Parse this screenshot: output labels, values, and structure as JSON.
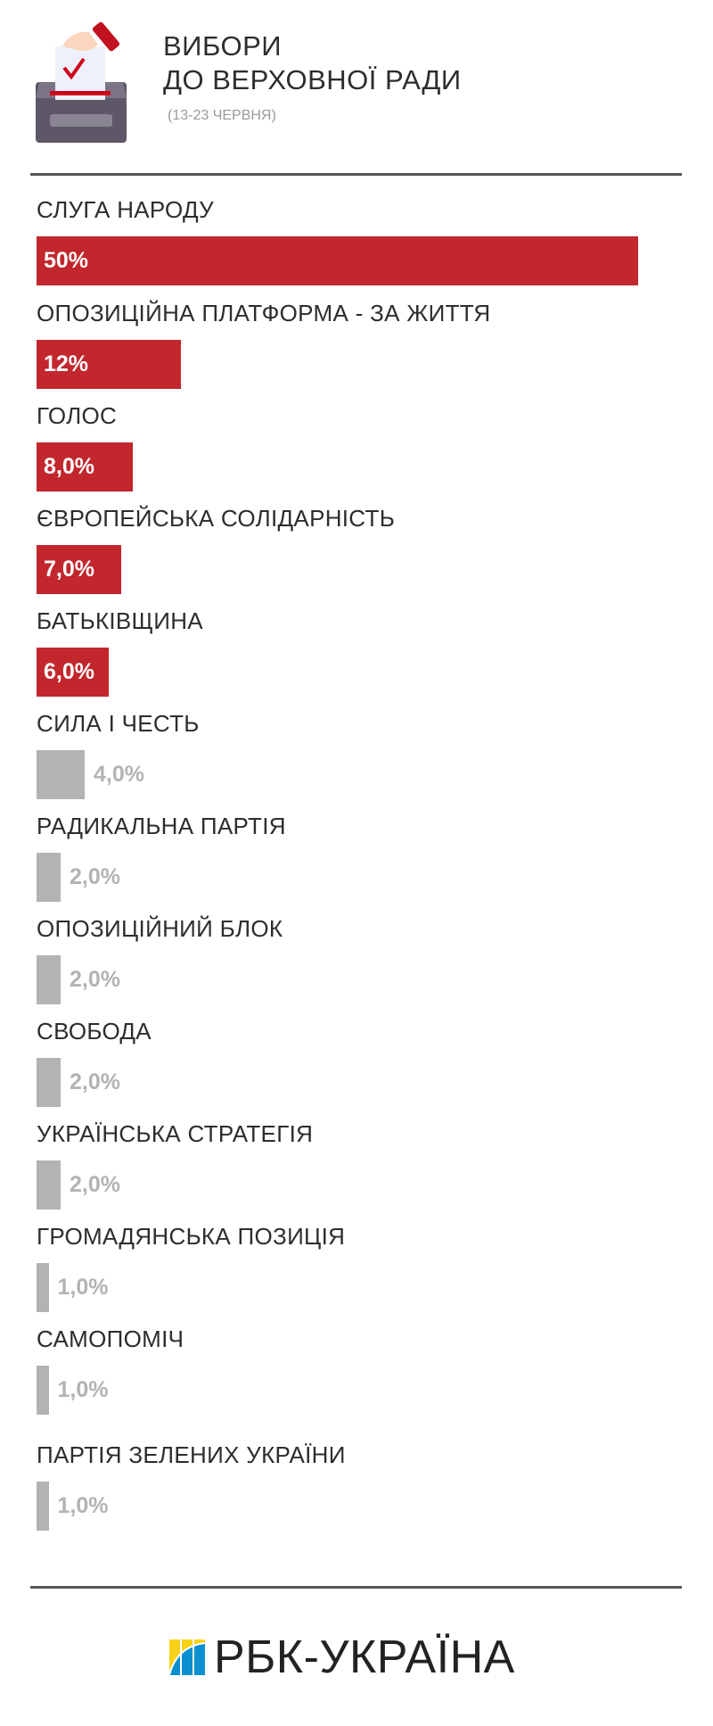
{
  "header": {
    "title_line1": "ВИБОРИ",
    "title_line2": "ДО ВЕРХОВНОЇ РАДИ",
    "subtitle": "(13-23 ЧЕРВНЯ)",
    "icon": "ballot-box-icon"
  },
  "chart_data": {
    "type": "bar",
    "orientation": "horizontal",
    "categories": [
      "СЛУГА НАРОДУ",
      "ОПОЗИЦІЙНА ПЛАТФОРМА - ЗА ЖИТТЯ",
      "ГОЛОС",
      "ЄВРОПЕЙСЬКА СОЛІДАРНІСТЬ",
      "БАТЬКІВЩИНА",
      "СИЛА І ЧЕСТЬ",
      "РАДИКАЛЬНА ПАРТІЯ",
      "ОПОЗИЦІЙНИЙ БЛОК",
      "СВОБОДА",
      "УКРАЇНСЬКА СТРАТЕГІЯ",
      "ГРОМАДЯНСЬКА ПОЗИЦІЯ",
      "САМОПОМІЧ",
      "ПАРТІЯ ЗЕЛЕНИХ УКРАЇНИ"
    ],
    "values": [
      50,
      12,
      8,
      7,
      6,
      4,
      2,
      2,
      2,
      2,
      1,
      1,
      1
    ],
    "data_labels": [
      "50%",
      "12%",
      "8,0%",
      "7,0%",
      "6,0%",
      "4,0%",
      "2,0%",
      "2,0%",
      "2,0%",
      "2,0%",
      "1,0%",
      "1,0%",
      "1,0%"
    ],
    "colors": {
      "above_threshold": "#c1272d",
      "below_threshold": "#b3b3b3"
    },
    "grid": false
  },
  "footer": {
    "logo_text": "РБК-УКРАЇНА"
  }
}
